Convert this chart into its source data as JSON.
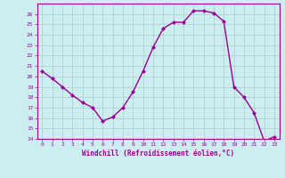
{
  "x": [
    0,
    1,
    2,
    3,
    4,
    5,
    6,
    7,
    8,
    9,
    10,
    11,
    12,
    13,
    14,
    15,
    16,
    17,
    18,
    19,
    20,
    21,
    22,
    23
  ],
  "y": [
    20.5,
    19.8,
    19.0,
    18.2,
    17.5,
    17.0,
    15.7,
    16.1,
    17.0,
    18.5,
    20.5,
    22.8,
    24.6,
    25.2,
    25.2,
    26.3,
    26.3,
    26.1,
    25.3,
    19.0,
    18.0,
    16.5,
    13.8,
    14.2
  ],
  "line_color": "#990099",
  "marker": "D",
  "marker_size": 2.0,
  "bg_color": "#cceeee",
  "grid_color": "#aacccc",
  "xlabel": "Windchill (Refroidissement éolien,°C)",
  "xlabel_color": "#990099",
  "tick_color": "#990099",
  "ylim": [
    14,
    27
  ],
  "xlim": [
    -0.5,
    23.5
  ],
  "yticks": [
    14,
    15,
    16,
    17,
    18,
    19,
    20,
    21,
    22,
    23,
    24,
    25,
    26
  ],
  "xticks": [
    0,
    1,
    2,
    3,
    4,
    5,
    6,
    7,
    8,
    9,
    10,
    11,
    12,
    13,
    14,
    15,
    16,
    17,
    18,
    19,
    20,
    21,
    22,
    23
  ],
  "xtick_labels": [
    "0",
    "1",
    "2",
    "3",
    "4",
    "5",
    "6",
    "7",
    "8",
    "9",
    "10",
    "11",
    "12",
    "13",
    "14",
    "15",
    "16",
    "17",
    "18",
    "19",
    "20",
    "21",
    "22",
    "23"
  ],
  "spine_color": "#990099",
  "linewidth": 1.0
}
